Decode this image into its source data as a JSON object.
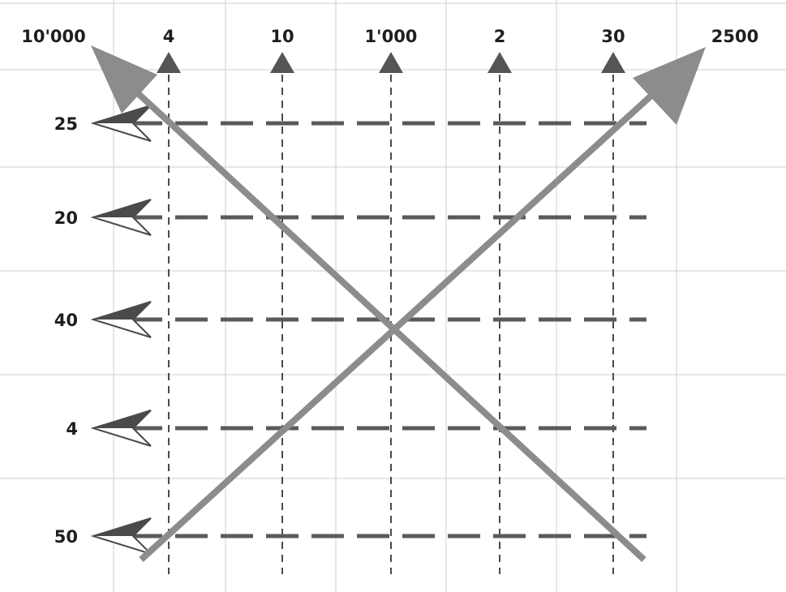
{
  "corners": {
    "top_left": "10'000",
    "top_right": "2500"
  },
  "columns": [
    {
      "label": "4"
    },
    {
      "label": "10"
    },
    {
      "label": "1'000"
    },
    {
      "label": "2"
    },
    {
      "label": "30"
    }
  ],
  "rows": [
    {
      "label": "25"
    },
    {
      "label": "20"
    },
    {
      "label": "40"
    },
    {
      "label": "4"
    },
    {
      "label": "50"
    }
  ],
  "colors": {
    "grid": "#cfcfcf",
    "dashed_row": "#5a5a5a",
    "dashed_column": "#4a4a4a",
    "column_arrowhead": "#555555",
    "row_arrowhead": "#4a4a4a",
    "diagonal": "#8c8c8c",
    "text": "#1e1e1e"
  }
}
